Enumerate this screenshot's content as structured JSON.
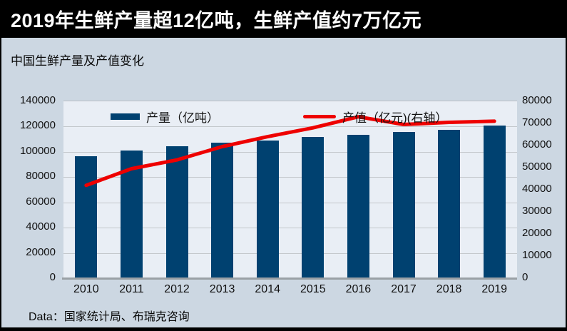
{
  "header": {
    "title": "2019年生鲜产量超12亿吨，生鲜产值约7万亿元"
  },
  "subtitle": "中国生鲜产量及产值变化",
  "footer": {
    "source": "Data：国家统计局、布瑞克咨询"
  },
  "colors": {
    "header_bg": "#000000",
    "page_bg": "#ccd7e2",
    "plot_bg": "#e9eef5",
    "bar": "#004170",
    "line": "#ee0000",
    "gridline": "#c3c7cb"
  },
  "chart_data": {
    "type": "bar",
    "subtype": "bar+line combo",
    "title": "中国生鲜产量及产值变化",
    "categories": [
      "2010",
      "2011",
      "2012",
      "2013",
      "2014",
      "2015",
      "2016",
      "2017",
      "2018",
      "2019"
    ],
    "series": [
      {
        "name": "产量（亿吨）",
        "type": "bar",
        "axis": "left",
        "color": "#004170",
        "values": [
          96500,
          101000,
          104500,
          107000,
          109000,
          112000,
          113500,
          116000,
          117500,
          121000
        ]
      },
      {
        "name": "产值（亿元)(右轴）",
        "type": "line",
        "axis": "right",
        "color": "#ee0000",
        "values": [
          42000,
          49500,
          53500,
          59500,
          64000,
          68000,
          73000,
          69500,
          70500,
          71000
        ]
      }
    ],
    "left_axis": {
      "min": 0,
      "max": 140000,
      "ticks": [
        "140000",
        "120000",
        "100000",
        "80000",
        "60000",
        "40000",
        "20000",
        "0"
      ]
    },
    "right_axis": {
      "min": 0,
      "max": 80000,
      "ticks": [
        "80000",
        "70000",
        "60000",
        "50000",
        "40000",
        "30000",
        "20000",
        "10000",
        "0"
      ]
    },
    "grid": true,
    "legend_position": "top"
  }
}
